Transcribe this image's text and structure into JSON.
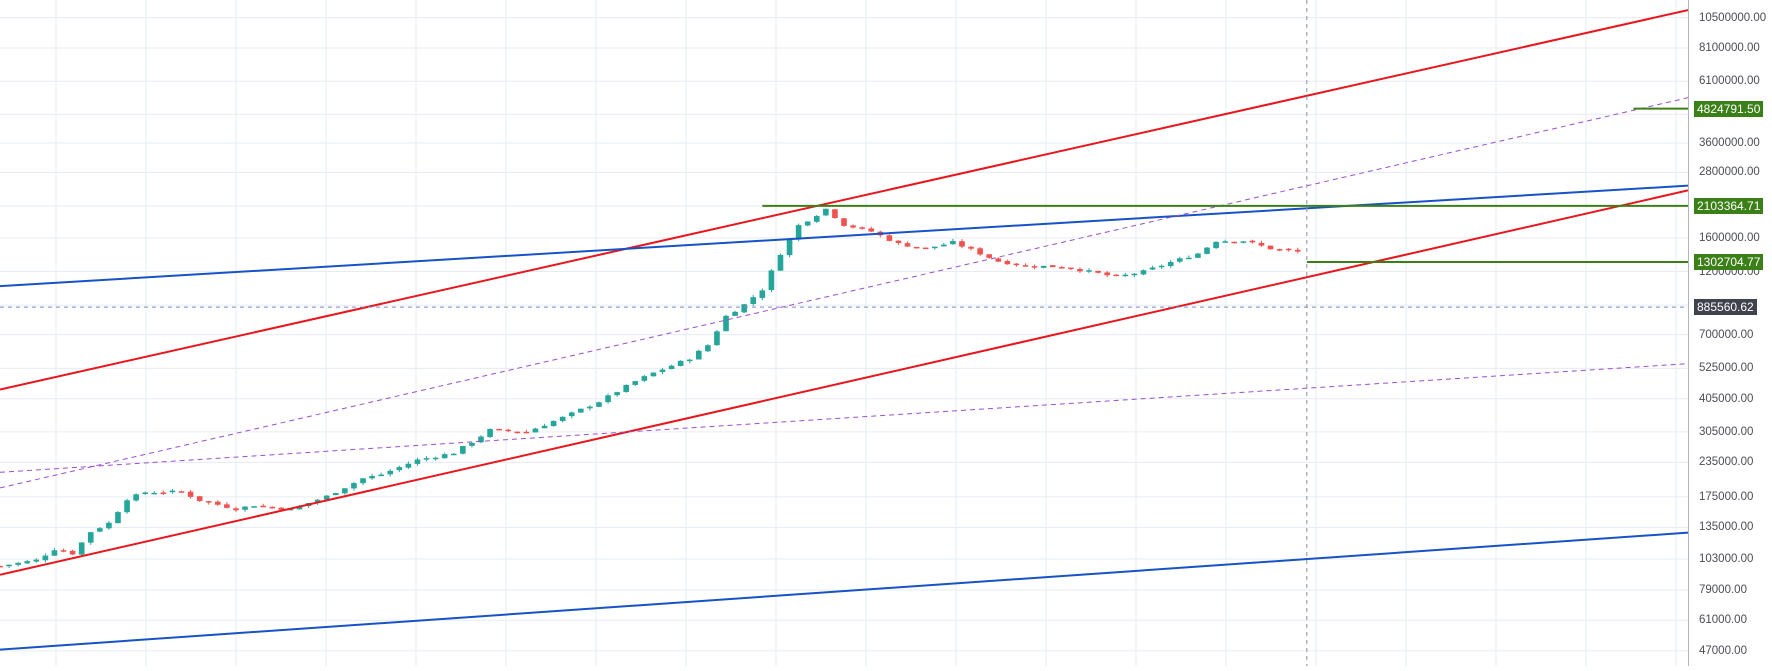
{
  "chart_data": {
    "type": "candlestick",
    "yscale": "log",
    "ylim": [
      42000,
      12000000
    ],
    "bar_count": 140,
    "x_range": [
      0,
      186
    ],
    "grid": true,
    "title": "",
    "xlabel": "",
    "ylabel": "",
    "y_ticks": [
      10500000,
      8100000,
      6100000,
      4600000,
      3600000,
      2800000,
      2100000,
      1600000,
      1200000,
      900000,
      700000,
      525000,
      405000,
      305000,
      235000,
      175000,
      135000,
      103000,
      79000,
      61000,
      47000
    ],
    "y_tick_labels": [
      "10500000.00",
      "8100000.00",
      "6100000.00",
      "4600000.00",
      "3600000.00",
      "2800000.00",
      "2100000.00",
      "1600000.00",
      "1200000.00",
      "900000.00",
      "700000.00",
      "525000.00",
      "405000.00",
      "305000.00",
      "235000.00",
      "175000.00",
      "135000.00",
      "103000.00",
      "79000.00",
      "61000.00",
      "47000.00"
    ],
    "close_points": [
      [
        0,
        97000
      ],
      [
        4,
        102000
      ],
      [
        6,
        112000
      ],
      [
        8,
        108000
      ],
      [
        10,
        130000
      ],
      [
        12,
        140000
      ],
      [
        14,
        172000
      ],
      [
        16,
        182000
      ],
      [
        20,
        183000
      ],
      [
        22,
        170000
      ],
      [
        26,
        158000
      ],
      [
        28,
        163000
      ],
      [
        32,
        157000
      ],
      [
        36,
        176000
      ],
      [
        40,
        205000
      ],
      [
        42,
        212000
      ],
      [
        46,
        240000
      ],
      [
        50,
        255000
      ],
      [
        52,
        280000
      ],
      [
        54,
        310000
      ],
      [
        58,
        305000
      ],
      [
        62,
        345000
      ],
      [
        66,
        395000
      ],
      [
        70,
        470000
      ],
      [
        72,
        505000
      ],
      [
        76,
        572000
      ],
      [
        78,
        640000
      ],
      [
        80,
        820000
      ],
      [
        82,
        905000
      ],
      [
        84,
        1030000
      ],
      [
        86,
        1400000
      ],
      [
        88,
        1780000
      ],
      [
        90,
        1950000
      ],
      [
        91,
        2050000
      ],
      [
        93,
        1790000
      ],
      [
        96,
        1690000
      ],
      [
        99,
        1520000
      ],
      [
        102,
        1460000
      ],
      [
        105,
        1540000
      ],
      [
        108,
        1400000
      ],
      [
        110,
        1310000
      ],
      [
        113,
        1260000
      ],
      [
        117,
        1250000
      ],
      [
        120,
        1200000
      ],
      [
        123,
        1145000
      ],
      [
        126,
        1200000
      ],
      [
        129,
        1300000
      ],
      [
        132,
        1400000
      ],
      [
        134,
        1560000
      ],
      [
        137,
        1560000
      ],
      [
        140,
        1460000
      ],
      [
        143,
        1420000
      ]
    ],
    "overlays": [
      {
        "kind": "trendline",
        "color": "#e8161c",
        "from": [
          0,
          438000
        ],
        "to": [
          186,
          11200000
        ]
      },
      {
        "kind": "trendline",
        "color": "#e8161c",
        "from": [
          0,
          90000
        ],
        "to": [
          186,
          2400000
        ]
      },
      {
        "kind": "trendline",
        "color": "#1752c7",
        "from": [
          0,
          1060000
        ],
        "to": [
          186,
          2500000
        ]
      },
      {
        "kind": "trendline",
        "color": "#1752c7",
        "from": [
          0,
          47500
        ],
        "to": [
          186,
          129000
        ]
      },
      {
        "kind": "dashed",
        "color": "#9c4fc9",
        "from": [
          0,
          189000
        ],
        "to": [
          186,
          5300000
        ]
      },
      {
        "kind": "dashed",
        "color": "#9c4fc9",
        "from": [
          0,
          216000
        ],
        "to": [
          198,
          580000
        ]
      },
      {
        "kind": "level",
        "color": "#3b7f17",
        "price": 2103364.71,
        "from_x": 84
      },
      {
        "kind": "level",
        "color": "#3b7f17",
        "price": 1302704.77,
        "from_x": 144
      },
      {
        "kind": "level",
        "color": "#3b7f17",
        "price": 4824791.5,
        "from_x": 180
      },
      {
        "kind": "level",
        "color": "#7b8bc4",
        "price": 885560.62,
        "dashed": true,
        "from_x": 0
      },
      {
        "kind": "vline",
        "color": "#8a8f9c",
        "x": 144
      }
    ],
    "price_badges": [
      {
        "price": 4824791.5,
        "label": "4824791.50",
        "color": "#3b7f17"
      },
      {
        "price": 2103364.71,
        "label": "2103364.71",
        "color": "#3b7f17"
      },
      {
        "price": 1302704.77,
        "label": "1302704.77",
        "color": "#3b7f17"
      },
      {
        "price": 885560.62,
        "label": "885560.62",
        "color": "#3f434e"
      }
    ],
    "colors": {
      "up": "#26a69a",
      "down": "#ef5350",
      "grid": "#e6ecf2",
      "axis_text": "#4a4d55"
    }
  }
}
